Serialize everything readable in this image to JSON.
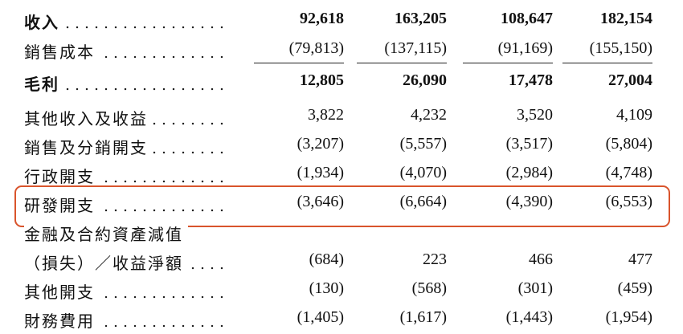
{
  "table": {
    "rows": [
      {
        "label": "收入",
        "values": [
          "92,618",
          "163,205",
          "108,647",
          "182,154"
        ],
        "bold": true
      },
      {
        "label": "銷售成本",
        "values": [
          "(79,813)",
          "(137,115)",
          "(91,169)",
          "(155,150)"
        ],
        "underline": true
      },
      {
        "label": "毛利",
        "values": [
          "12,805",
          "26,090",
          "17,478",
          "27,004"
        ],
        "bold": true
      },
      {
        "label": "其他收入及收益",
        "values": [
          "3,822",
          "4,232",
          "3,520",
          "4,109"
        ]
      },
      {
        "label": "銷售及分銷開支",
        "values": [
          "(3,207)",
          "(5,557)",
          "(3,517)",
          "(5,804)"
        ]
      },
      {
        "label": "行政開支",
        "values": [
          "(1,934)",
          "(4,070)",
          "(2,984)",
          "(4,748)"
        ]
      },
      {
        "label": "研發開支",
        "values": [
          "(3,646)",
          "(6,664)",
          "(4,390)",
          "(6,553)"
        ],
        "highlight": true
      },
      {
        "label": "金融及合約資產減值"
      },
      {
        "label": "（損失）／收益淨額",
        "values": [
          "(684)",
          "223",
          "466",
          "477"
        ],
        "indent": true
      },
      {
        "label": "其他開支",
        "values": [
          "(130)",
          "(568)",
          "(301)",
          "(459)"
        ]
      },
      {
        "label": "財務費用",
        "values": [
          "(1,405)",
          "(1,617)",
          "(1,443)",
          "(1,954)"
        ]
      }
    ]
  }
}
